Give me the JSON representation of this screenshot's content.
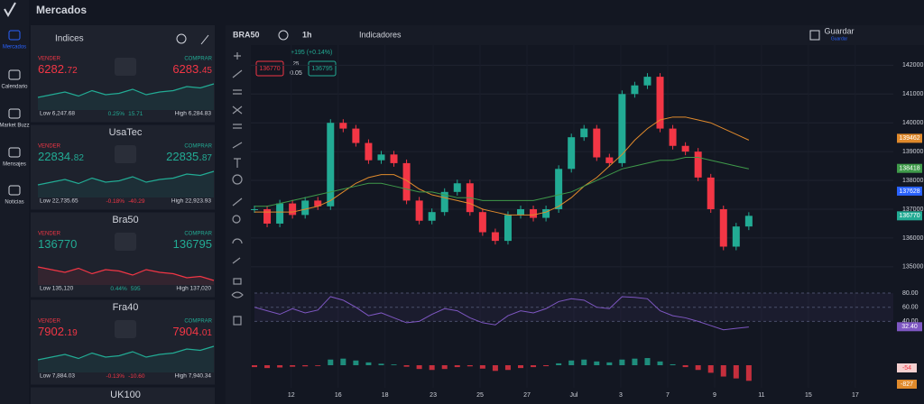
{
  "nav": {
    "items": [
      "Mercados",
      "Calendario",
      "Market Buzz",
      "Mensajes",
      "Noticias"
    ]
  },
  "header": {
    "title": "Mercados"
  },
  "panel": {
    "tab": "Indices",
    "markets": [
      {
        "sell_label": "VENDER",
        "sell_main": "6282.",
        "sell_small": "72",
        "buy_label": "COMPRAR",
        "buy_main": "6283.",
        "buy_small": "45",
        "price_color": "#f23645",
        "low": "Low 6,247.68",
        "change_pct": "0.25%",
        "change_abs": "15.71",
        "change_color": "#22ab94",
        "high": "High 6,284.83",
        "color": "#22ab94"
      },
      {
        "name": "UsaTec",
        "sell_label": "VENDER",
        "sell_main": "22834.",
        "sell_small": "82",
        "buy_label": "COMPRAR",
        "buy_main": "22835.",
        "buy_small": "87",
        "price_color": "#22ab94",
        "low": "Low 22,735.65",
        "change_pct": "-0.18%",
        "change_abs": "-40.29",
        "change_color": "#f23645",
        "high": "High 22,923.93",
        "color": "#22ab94"
      },
      {
        "name": "Bra50",
        "sell_label": "VENDER",
        "sell_main": "136770",
        "sell_small": "",
        "buy_label": "COMPRAR",
        "buy_main": "136795",
        "buy_small": "",
        "price_color": "#22ab94",
        "low": "Low 135,120",
        "change_pct": "0.44%",
        "change_abs": "595",
        "change_color": "#22ab94",
        "high": "High 137,020",
        "color": "#f23645"
      },
      {
        "name": "Fra40",
        "sell_label": "VENDER",
        "sell_main": "7902.",
        "sell_small": "19",
        "buy_label": "COMPRAR",
        "buy_main": "7904.",
        "buy_small": "01",
        "price_color": "#f23645",
        "low": "Low 7,884.03",
        "change_pct": "-0.13%",
        "change_abs": "-10.60",
        "change_color": "#f23645",
        "high": "High 7,940.34",
        "color": "#22ab94"
      },
      {
        "name": "UK100"
      }
    ]
  },
  "toolbar": {
    "symbol": "BRA50",
    "interval": "1h",
    "indicators": "Indicadores",
    "save": "Guardar",
    "save_sub": "Guardar"
  },
  "legend": {
    "change": "+195 (+0.14%)",
    "sell": "136770",
    "spread_top": "25",
    "spread": "0.05",
    "buy": "136795"
  },
  "chart_data": {
    "type": "candlestick",
    "values": [
      137000,
      136500,
      137200,
      136800,
      137300,
      137100,
      140000,
      139800,
      139300,
      138700,
      138900,
      138600,
      137300,
      136600,
      136900,
      137600,
      137900,
      136900,
      136200,
      135900,
      136800,
      137000,
      136700,
      137000,
      138400,
      139500,
      139800,
      138800,
      138600,
      141000,
      141300,
      141600,
      139800,
      139200,
      139000,
      138100,
      137000,
      135700,
      136400,
      136770
    ],
    "lines": [
      {
        "color": "#e08a2c",
        "values": [
          136900,
          136900,
          136900,
          136900,
          137000,
          137100,
          137300,
          137600,
          137900,
          138100,
          138200,
          138200,
          138000,
          137700,
          137500,
          137400,
          137300,
          137200,
          137000,
          136900,
          136800,
          136800,
          136800,
          136900,
          137100,
          137400,
          137800,
          138100,
          138500,
          138900,
          139400,
          139800,
          140100,
          140200,
          140200,
          140100,
          140000,
          139800,
          139600,
          139400
        ]
      },
      {
        "color": "#3f9a4a",
        "values": [
          137100,
          137100,
          137200,
          137300,
          137400,
          137500,
          137600,
          137700,
          137800,
          137900,
          137900,
          137800,
          137700,
          137600,
          137600,
          137500,
          137400,
          137400,
          137300,
          137300,
          137300,
          137300,
          137300,
          137400,
          137500,
          137600,
          137800,
          138000,
          138200,
          138400,
          138500,
          138600,
          138700,
          138700,
          138800,
          138800,
          138700,
          138600,
          138500,
          138400
        ]
      }
    ],
    "xlim": [
      0,
      50.4
    ],
    "xticks": [
      {
        "value": 2.9,
        "label": "12"
      },
      {
        "value": 6.6,
        "label": "16"
      },
      {
        "value": 10.3,
        "label": "18"
      },
      {
        "value": 14.1,
        "label": "23"
      },
      {
        "value": 17.8,
        "label": "25"
      },
      {
        "value": 21.5,
        "label": "27"
      },
      {
        "value": 25.2,
        "label": "Jul"
      },
      {
        "value": 28.9,
        "label": "3"
      },
      {
        "value": 32.6,
        "label": "7"
      },
      {
        "value": 36.3,
        "label": "9"
      },
      {
        "value": 40,
        "label": "11"
      },
      {
        "value": 43.7,
        "label": "15"
      },
      {
        "value": 47.4,
        "label": "17"
      }
    ],
    "ylim": [
      134400,
      142700
    ],
    "yticks": [
      135000,
      136000,
      137000,
      138000,
      139000,
      140000,
      141000,
      142000
    ],
    "price_tags": [
      {
        "value": 139462,
        "color": "#e08a2c"
      },
      {
        "value": 138418,
        "color": "#3f9a4a"
      },
      {
        "value": 137628,
        "color": "#2962ff"
      },
      {
        "value": 136770,
        "color": "#22ab94"
      }
    ],
    "osc": {
      "color": "#7e57c2",
      "values": [
        60,
        55,
        50,
        58,
        52,
        56,
        75,
        70,
        60,
        48,
        52,
        45,
        38,
        40,
        50,
        58,
        55,
        45,
        38,
        35,
        48,
        55,
        52,
        58,
        68,
        72,
        70,
        60,
        58,
        75,
        74,
        72,
        55,
        48,
        45,
        40,
        34,
        28,
        30,
        32
      ],
      "ylim": [
        20,
        89
      ],
      "yticks": [
        {
          "value": 80,
          "label": "80.00"
        },
        {
          "value": 60,
          "label": "60.00"
        },
        {
          "value": 40,
          "label": "40.00"
        }
      ],
      "tag": {
        "value": 32.4,
        "label": "32.40"
      }
    },
    "macd": {
      "values": [
        -100,
        -150,
        -120,
        -80,
        -60,
        -40,
        300,
        350,
        250,
        150,
        80,
        40,
        -80,
        -200,
        -250,
        -200,
        -100,
        -60,
        -180,
        -300,
        -250,
        -150,
        -100,
        -50,
        100,
        250,
        300,
        200,
        150,
        300,
        350,
        380,
        200,
        50,
        -100,
        -250,
        -400,
        -600,
        -700,
        -827
      ],
      "ylim": [
        -1100,
        1100
      ],
      "tags": [
        -54,
        -827
      ]
    }
  }
}
